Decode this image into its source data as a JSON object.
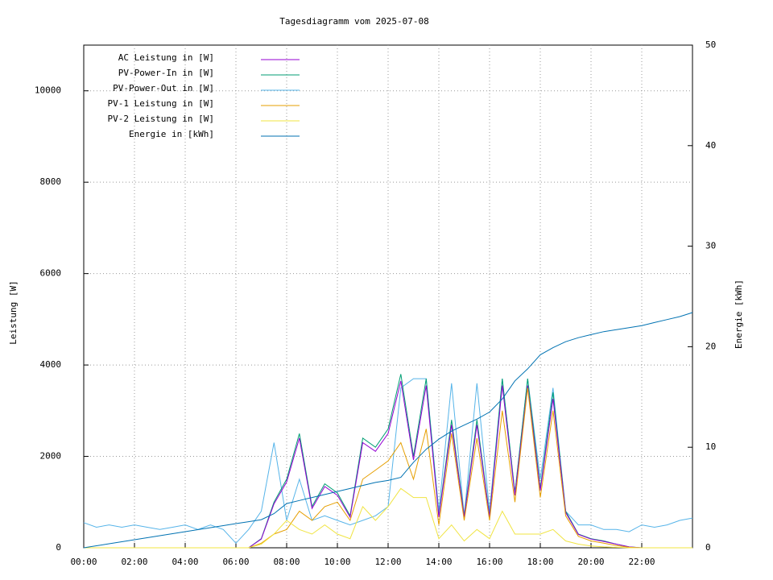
{
  "chart_data": {
    "type": "line",
    "title": "Tagesdiagramm vom 2025-07-08",
    "ylabel": "Leistung [W]",
    "y2label": "Energie [kWh]",
    "grid": true,
    "legend": "upper left",
    "x": [
      0,
      0.5,
      1,
      1.5,
      2,
      2.5,
      3,
      3.5,
      4,
      4.5,
      5,
      5.5,
      6,
      6.5,
      7,
      7.5,
      8,
      8.5,
      9,
      9.5,
      10,
      10.5,
      11,
      11.5,
      12,
      12.5,
      13,
      13.5,
      14,
      14.5,
      15,
      15.5,
      16,
      16.5,
      17,
      17.5,
      18,
      18.5,
      19,
      19.5,
      20,
      20.5,
      21,
      21.5,
      22,
      22.5,
      23,
      23.5,
      24
    ],
    "xlim": [
      0,
      24
    ],
    "xticks": [
      {
        "value": 0,
        "label": "00:00"
      },
      {
        "value": 2,
        "label": "02:00"
      },
      {
        "value": 4,
        "label": "04:00"
      },
      {
        "value": 6,
        "label": "06:00"
      },
      {
        "value": 8,
        "label": "08:00"
      },
      {
        "value": 10,
        "label": "10:00"
      },
      {
        "value": 12,
        "label": "12:00"
      },
      {
        "value": 14,
        "label": "14:00"
      },
      {
        "value": 16,
        "label": "16:00"
      },
      {
        "value": 18,
        "label": "18:00"
      },
      {
        "value": 20,
        "label": "20:00"
      },
      {
        "value": 22,
        "label": "22:00"
      }
    ],
    "ylim": [
      0,
      11000
    ],
    "yticks": [
      0,
      2000,
      4000,
      6000,
      8000,
      10000
    ],
    "y2lim": [
      0,
      50
    ],
    "y2ticks": [
      0,
      10,
      20,
      30,
      40,
      50
    ],
    "series": [
      {
        "name": "AC Leistung in [W]",
        "color": "#9400d3",
        "values": [
          0,
          0,
          0,
          0,
          0,
          0,
          0,
          0,
          0,
          0,
          0,
          0,
          0,
          0,
          190,
          960,
          1440,
          2400,
          860,
          1340,
          1150,
          670,
          2300,
          2110,
          2500,
          3650,
          1920,
          3550,
          670,
          2690,
          670,
          2690,
          670,
          3550,
          1150,
          3550,
          1250,
          3260,
          770,
          290,
          190,
          140,
          80,
          20,
          0,
          0,
          0,
          0,
          0
        ]
      },
      {
        "name": "PV-Power-In in [W]",
        "color": "#009e73",
        "values": [
          0,
          0,
          0,
          0,
          0,
          0,
          0,
          0,
          0,
          0,
          0,
          0,
          0,
          0,
          200,
          1000,
          1500,
          2500,
          900,
          1400,
          1200,
          700,
          2400,
          2200,
          2600,
          3800,
          2000,
          3700,
          700,
          2800,
          700,
          2800,
          700,
          3700,
          1200,
          3700,
          1300,
          3400,
          800,
          300,
          200,
          150,
          80,
          20,
          0,
          0,
          0,
          0,
          0
        ]
      },
      {
        "name": "PV-Power-Out in [W]",
        "color": "#56b4e9",
        "values": [
          550,
          450,
          500,
          450,
          500,
          450,
          400,
          450,
          500,
          400,
          500,
          400,
          100,
          400,
          800,
          2300,
          600,
          1500,
          600,
          700,
          600,
          500,
          600,
          700,
          900,
          3500,
          3700,
          3700,
          800,
          3600,
          700,
          3600,
          800,
          3700,
          1200,
          3700,
          1500,
          3500,
          800,
          500,
          500,
          400,
          400,
          350,
          500,
          450,
          500,
          600,
          650
        ]
      },
      {
        "name": "PV-1 Leistung in [W]",
        "color": "#e69f00",
        "values": [
          0,
          0,
          0,
          0,
          0,
          0,
          0,
          0,
          0,
          0,
          0,
          0,
          0,
          0,
          100,
          300,
          400,
          800,
          600,
          900,
          1000,
          600,
          1500,
          1700,
          1900,
          2300,
          1500,
          2600,
          500,
          2500,
          600,
          2400,
          600,
          3000,
          1000,
          3500,
          1100,
          3000,
          700,
          250,
          150,
          100,
          50,
          10,
          0,
          0,
          0,
          0,
          0
        ]
      },
      {
        "name": "PV-2 Leistung in [W]",
        "color": "#f0e442",
        "values": [
          0,
          0,
          0,
          0,
          0,
          0,
          0,
          0,
          0,
          0,
          0,
          0,
          0,
          0,
          80,
          300,
          600,
          400,
          300,
          500,
          300,
          200,
          900,
          600,
          900,
          1300,
          1100,
          1100,
          200,
          500,
          150,
          400,
          200,
          800,
          300,
          300,
          300,
          400,
          150,
          80,
          40,
          20,
          10,
          0,
          0,
          0,
          0,
          0,
          0
        ]
      },
      {
        "name": "Energie in [kWh]",
        "color": "#0072b2",
        "axis": "y2",
        "values": [
          0,
          0.2,
          0.4,
          0.6,
          0.8,
          1.0,
          1.2,
          1.4,
          1.6,
          1.8,
          2.0,
          2.2,
          2.4,
          2.6,
          2.8,
          3.4,
          4.4,
          4.7,
          5.0,
          5.3,
          5.6,
          5.9,
          6.2,
          6.5,
          6.7,
          7.0,
          8.5,
          9.8,
          10.8,
          11.6,
          12.2,
          12.8,
          13.5,
          14.8,
          16.6,
          17.8,
          19.2,
          19.9,
          20.5,
          20.9,
          21.2,
          21.5,
          21.7,
          21.9,
          22.1,
          22.4,
          22.7,
          23.0,
          23.4
        ]
      }
    ]
  }
}
